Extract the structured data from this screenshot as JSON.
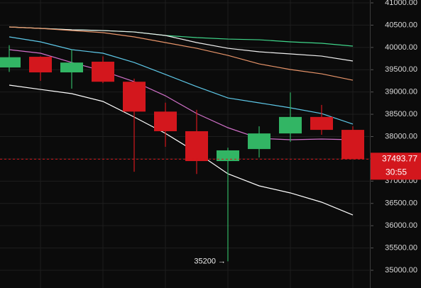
{
  "chart_data": {
    "type": "candlestick",
    "ylim": [
      34602,
      41064
    ],
    "yticks": [
      {
        "value": 41000,
        "label": "41000.00"
      },
      {
        "value": 40500,
        "label": "40500.00"
      },
      {
        "value": 40000,
        "label": "40000.00"
      },
      {
        "value": 39500,
        "label": "39500.00"
      },
      {
        "value": 39000,
        "label": "39000.00"
      },
      {
        "value": 38500,
        "label": "38500.00"
      },
      {
        "value": 38000,
        "label": "38000.00"
      },
      {
        "value": 37500,
        "label": "37500.00"
      },
      {
        "value": 37000,
        "label": "37000.00"
      },
      {
        "value": 36500,
        "label": "36500.00"
      },
      {
        "value": 36000,
        "label": "36000.00"
      },
      {
        "value": 35500,
        "label": "35500.00"
      },
      {
        "value": 35000,
        "label": "35000.00"
      }
    ],
    "grid": true,
    "up_color": "#32b564",
    "down_color": "#d3171d",
    "open": [
      39550,
      39790,
      39440,
      39680,
      39230,
      38560,
      38120,
      37450,
      37720,
      38070,
      38440,
      38150
    ],
    "high": [
      40050,
      39800,
      39950,
      39800,
      39300,
      38760,
      38600,
      37750,
      38230,
      38990,
      38710,
      38230
    ],
    "low": [
      39450,
      39250,
      39075,
      39200,
      37210,
      37770,
      37160,
      35200,
      37530,
      37880,
      38040,
      37490
    ],
    "close": [
      39780,
      39440,
      39660,
      39230,
      38560,
      38120,
      37450,
      37690,
      38070,
      38440,
      38150,
      37494
    ],
    "lines": [
      {
        "color": "#3fd68a",
        "values": [
          40459,
          40427,
          40395,
          40379,
          40347,
          40268,
          40220,
          40188,
          40172,
          40125,
          40093,
          40029
        ]
      },
      {
        "color": "#f0f0f0",
        "values": [
          40459,
          40427,
          40395,
          40379,
          40347,
          40268,
          40109,
          39981,
          39902,
          39854,
          39806,
          39695
        ]
      },
      {
        "color": "#e8956a",
        "values": [
          40459,
          40427,
          40379,
          40332,
          40236,
          40109,
          39981,
          39822,
          39631,
          39504,
          39408,
          39265
        ]
      },
      {
        "color": "#5ec8e8",
        "values": [
          40236,
          40125,
          39950,
          39870,
          39663,
          39393,
          39122,
          38867,
          38756,
          38645,
          38517,
          38279
        ]
      },
      {
        "color": "#d070c8",
        "values": [
          39950,
          39870,
          39663,
          39472,
          39233,
          38915,
          38517,
          38199,
          37960,
          37928,
          37944,
          37928
        ]
      },
      {
        "color": "#ffffff",
        "values": [
          39154,
          39058,
          38963,
          38788,
          38438,
          38072,
          37642,
          37165,
          36894,
          36735,
          36528,
          36241
        ]
      }
    ],
    "current_price": 37493.77,
    "countdown": "30:55",
    "low_annotation": "35200 →"
  }
}
